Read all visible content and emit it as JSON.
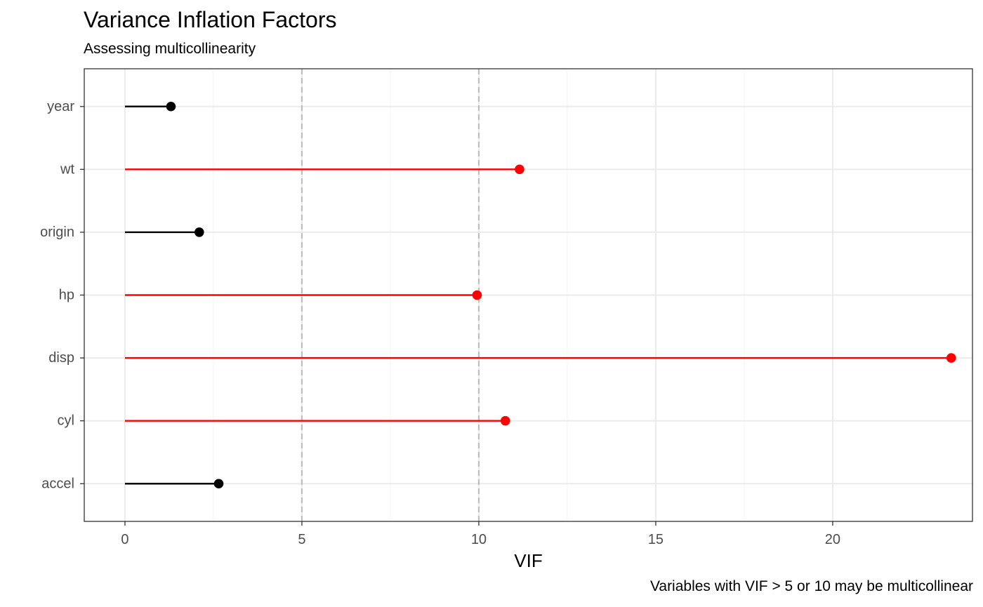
{
  "chart_data": {
    "type": "lollipop",
    "title": "Variance Inflation Factors",
    "subtitle": "Assessing multicollinearity",
    "caption": "Variables with VIF > 5 or 10 may be multicollinear",
    "xlabel": "VIF",
    "ylabel": "",
    "categories": [
      "accel",
      "cyl",
      "disp",
      "hp",
      "origin",
      "wt",
      "year"
    ],
    "values": [
      2.65,
      10.75,
      23.35,
      9.95,
      2.1,
      11.15,
      1.3
    ],
    "xlim": [
      -1.15,
      23.95
    ],
    "x_ticks": [
      0,
      5,
      10,
      15,
      20
    ],
    "x_tick_labels": [
      "0",
      "5",
      "10",
      "15",
      "20"
    ],
    "reference_lines": [
      5,
      10
    ],
    "threshold": 5,
    "colors": {
      "above_threshold": "#ff0000",
      "below_threshold": "#000000",
      "reference_line": "#bebebe",
      "grid_major": "#ebebeb",
      "grid_minor": "#f5f5f5",
      "panel_border": "#333333"
    },
    "grid": true,
    "legend": "none"
  }
}
